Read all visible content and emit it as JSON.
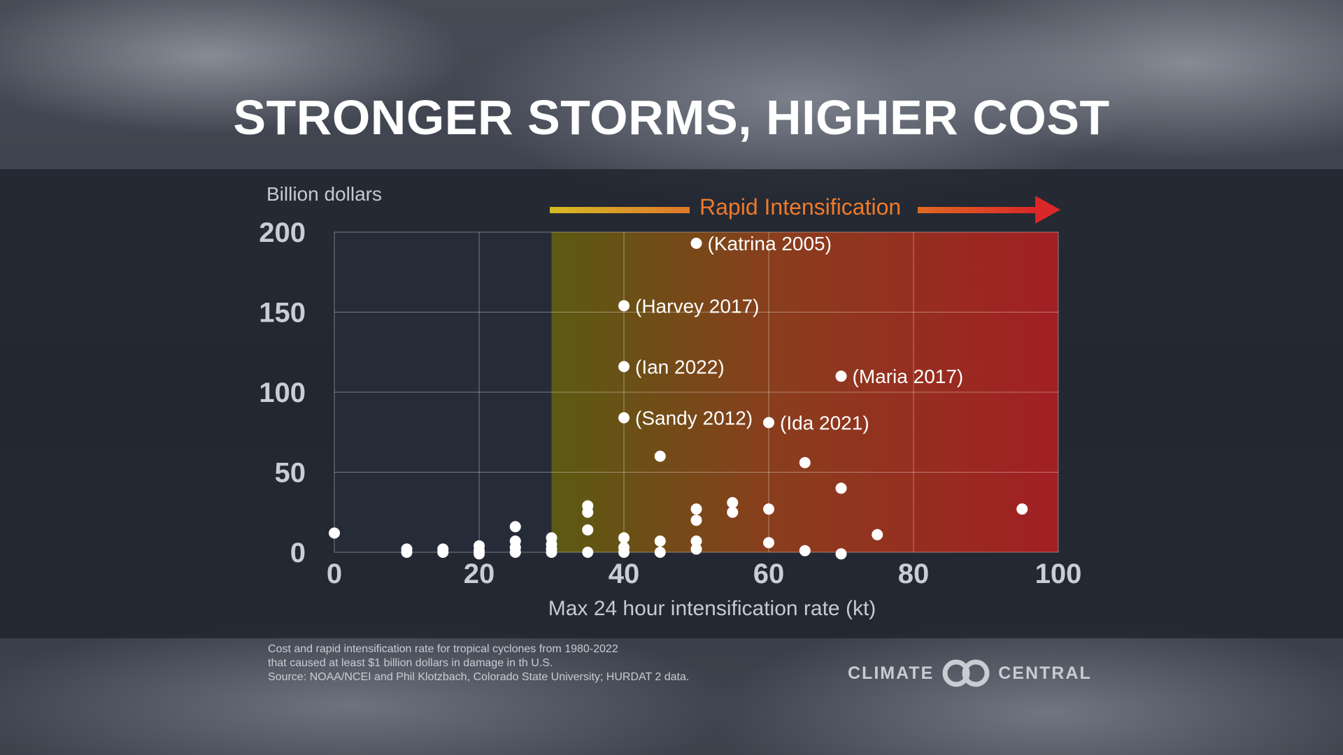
{
  "title": "STRONGER STORMS, HIGHER COST",
  "footnote": [
    "Cost and rapid intensification rate for tropical cyclones from 1980-2022",
    "that caused at least $1 billion dollars in damage in th U.S.",
    "Source: NOAA/NCEI  and Phil Klotzbach, Colorado State University; HURDAT 2 data."
  ],
  "logo": {
    "left": "CLIMATE",
    "right": "CENTRAL"
  },
  "chart_data": {
    "type": "scatter",
    "ylabel": "Billion dollars",
    "xlabel": "Max 24 hour intensification rate (kt)",
    "xlim": [
      0,
      100
    ],
    "ylim": [
      0,
      200
    ],
    "xticks": [
      0,
      20,
      40,
      60,
      80,
      100
    ],
    "yticks": [
      0,
      50,
      100,
      150,
      200
    ],
    "grid": true,
    "annotation": {
      "label": "Rapid Intensification",
      "x_start": 30,
      "x_end": 100,
      "colors": [
        "#cfb11c",
        "#e06a22",
        "#d9282a"
      ]
    },
    "points": [
      {
        "x": 50,
        "y": 193,
        "label": "(Katrina 2005)"
      },
      {
        "x": 40,
        "y": 154,
        "label": "(Harvey 2017)"
      },
      {
        "x": 40,
        "y": 116,
        "label": "(Ian 2022)"
      },
      {
        "x": 70,
        "y": 110,
        "label": "(Maria 2017)"
      },
      {
        "x": 40,
        "y": 84,
        "label": "(Sandy 2012)"
      },
      {
        "x": 60,
        "y": 81,
        "label": "(Ida 2021)"
      },
      {
        "x": 0,
        "y": 12
      },
      {
        "x": 10,
        "y": 2
      },
      {
        "x": 10,
        "y": 0
      },
      {
        "x": 15,
        "y": 2
      },
      {
        "x": 15,
        "y": 0
      },
      {
        "x": 20,
        "y": 4
      },
      {
        "x": 20,
        "y": 1
      },
      {
        "x": 20,
        "y": -1
      },
      {
        "x": 25,
        "y": 16
      },
      {
        "x": 25,
        "y": 7
      },
      {
        "x": 25,
        "y": 3
      },
      {
        "x": 25,
        "y": 0
      },
      {
        "x": 30,
        "y": 9
      },
      {
        "x": 30,
        "y": 5
      },
      {
        "x": 30,
        "y": 2
      },
      {
        "x": 30,
        "y": 0
      },
      {
        "x": 35,
        "y": 29
      },
      {
        "x": 35,
        "y": 25
      },
      {
        "x": 35,
        "y": 14
      },
      {
        "x": 35,
        "y": 0
      },
      {
        "x": 40,
        "y": 9
      },
      {
        "x": 40,
        "y": 3
      },
      {
        "x": 40,
        "y": 0
      },
      {
        "x": 45,
        "y": 60
      },
      {
        "x": 45,
        "y": 7
      },
      {
        "x": 45,
        "y": 0
      },
      {
        "x": 50,
        "y": 27
      },
      {
        "x": 50,
        "y": 20
      },
      {
        "x": 50,
        "y": 7
      },
      {
        "x": 50,
        "y": 2
      },
      {
        "x": 55,
        "y": 31
      },
      {
        "x": 55,
        "y": 25
      },
      {
        "x": 60,
        "y": 27
      },
      {
        "x": 60,
        "y": 6
      },
      {
        "x": 65,
        "y": 56
      },
      {
        "x": 65,
        "y": 1
      },
      {
        "x": 70,
        "y": 40
      },
      {
        "x": 70,
        "y": -1
      },
      {
        "x": 75,
        "y": 11
      },
      {
        "x": 95,
        "y": 27
      }
    ]
  }
}
